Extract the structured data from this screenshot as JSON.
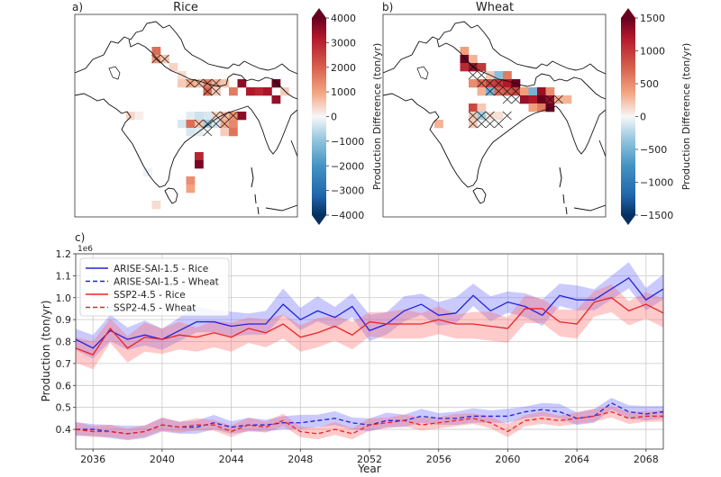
{
  "figure": {
    "panels": [
      {
        "panel_label": "a)",
        "title": "Rice",
        "colorbar": {
          "label": "Production Difference (ton/yr)",
          "min": -4000,
          "max": 4000,
          "ticks": [
            4000,
            3000,
            2000,
            1000,
            0,
            -1000,
            -2000,
            -3000,
            -4000
          ],
          "tick_labels": [
            "4000",
            "3000",
            "2000",
            "1000",
            "0",
            "−1000",
            "−2000",
            "−3000",
            "−4000"
          ],
          "extend": "both",
          "colormap": "RdBu_r"
        }
      },
      {
        "panel_label": "b)",
        "title": "Wheat",
        "colorbar": {
          "label": "Production Difference (ton/yr)",
          "min": -1500,
          "max": 1500,
          "ticks": [
            1500,
            1000,
            500,
            0,
            -500,
            -1000,
            -1500
          ],
          "tick_labels": [
            "1500",
            "1000",
            "500",
            "0",
            "−500",
            "−1000",
            "−1500"
          ],
          "extend": "both",
          "colormap": "RdBu_r"
        }
      }
    ],
    "timeseries_panel_label": "c)"
  },
  "chart_data": [
    {
      "type": "heatmap",
      "title": "Rice",
      "panel": "a)",
      "region": "South Asia (India)",
      "value_label": "Production Difference (ton/yr)",
      "vmin": -4000,
      "vmax": 4000,
      "hatching": "x marks statistically significant cells",
      "cells_description": "Positive differences concentrated in the Indo-Gangetic plain, Bangladesh/Assam and eastern coast; weak negative values in central-east India",
      "cells": [
        {
          "col": 9,
          "row": 4,
          "value": 1800
        },
        {
          "col": 9,
          "row": 5,
          "value": 1200
        },
        {
          "col": 10,
          "row": 5,
          "value": 600
        },
        {
          "col": 11,
          "row": 6,
          "value": 400
        },
        {
          "col": 12,
          "row": 7,
          "value": 300
        },
        {
          "col": 13,
          "row": 8,
          "value": 900
        },
        {
          "col": 14,
          "row": 8,
          "value": 700
        },
        {
          "col": 12,
          "row": 8,
          "value": 500
        },
        {
          "col": 15,
          "row": 8,
          "value": 1500
        },
        {
          "col": 16,
          "row": 8,
          "value": 800
        },
        {
          "col": 17,
          "row": 8,
          "value": 600
        },
        {
          "col": 15,
          "row": 9,
          "value": 1900
        },
        {
          "col": 16,
          "row": 9,
          "value": 500
        },
        {
          "col": 18,
          "row": 9,
          "value": 1600
        },
        {
          "col": 19,
          "row": 8,
          "value": 3600
        },
        {
          "col": 20,
          "row": 9,
          "value": 3200
        },
        {
          "col": 21,
          "row": 9,
          "value": 3000
        },
        {
          "col": 22,
          "row": 9,
          "value": 3300
        },
        {
          "col": 23,
          "row": 8,
          "value": 4000
        },
        {
          "col": 23,
          "row": 10,
          "value": 3500
        },
        {
          "col": 24,
          "row": 9,
          "value": 500
        },
        {
          "col": 6,
          "row": 12,
          "value": 400
        },
        {
          "col": 7,
          "row": 12,
          "value": 100
        },
        {
          "col": 13,
          "row": 12,
          "value": -200
        },
        {
          "col": 14,
          "row": 12,
          "value": -400
        },
        {
          "col": 15,
          "row": 12,
          "value": -300
        },
        {
          "col": 16,
          "row": 12,
          "value": 400
        },
        {
          "col": 17,
          "row": 12,
          "value": 700
        },
        {
          "col": 18,
          "row": 12,
          "value": 1200
        },
        {
          "col": 19,
          "row": 12,
          "value": 3600
        },
        {
          "col": 12,
          "row": 13,
          "value": -300
        },
        {
          "col": 13,
          "row": 13,
          "value": 1800
        },
        {
          "col": 14,
          "row": 13,
          "value": 600
        },
        {
          "col": 15,
          "row": 13,
          "value": -800
        },
        {
          "col": 16,
          "row": 13,
          "value": -300
        },
        {
          "col": 17,
          "row": 13,
          "value": 900
        },
        {
          "col": 18,
          "row": 13,
          "value": 1400
        },
        {
          "col": 13,
          "row": 14,
          "value": -300
        },
        {
          "col": 14,
          "row": 14,
          "value": -200
        },
        {
          "col": 17,
          "row": 14,
          "value": 500
        },
        {
          "col": 18,
          "row": 14,
          "value": 1700
        },
        {
          "col": 14,
          "row": 17,
          "value": 3000
        },
        {
          "col": 14,
          "row": 18,
          "value": 3800
        },
        {
          "col": 13,
          "row": 20,
          "value": 1300
        },
        {
          "col": 13,
          "row": 21,
          "value": 1000
        },
        {
          "col": 8,
          "row": 19,
          "value": -100
        },
        {
          "col": 9,
          "row": 23,
          "value": 300
        }
      ],
      "hatched_cells": [
        [
          9,
          5
        ],
        [
          10,
          5
        ],
        [
          13,
          8
        ],
        [
          14,
          8
        ],
        [
          15,
          8
        ],
        [
          16,
          8
        ],
        [
          15,
          9
        ],
        [
          16,
          9
        ],
        [
          14,
          13
        ],
        [
          15,
          13
        ],
        [
          16,
          13
        ],
        [
          15,
          14
        ],
        [
          17,
          12
        ],
        [
          18,
          12
        ],
        [
          17,
          13
        ],
        [
          16,
          12
        ]
      ]
    },
    {
      "type": "heatmap",
      "title": "Wheat",
      "panel": "b)",
      "region": "South Asia (India)",
      "value_label": "Production Difference (ton/yr)",
      "vmin": -1500,
      "vmax": 1500,
      "hatching": "x marks statistically significant cells",
      "cells_description": "Strong positive differences across Punjab / Indo-Gangetic plain; a few small negative cells",
      "cells": [
        {
          "col": 9,
          "row": 4,
          "value": 400
        },
        {
          "col": 9,
          "row": 5,
          "value": 1500
        },
        {
          "col": 10,
          "row": 5,
          "value": 300
        },
        {
          "col": 9,
          "row": 6,
          "value": 1100
        },
        {
          "col": 10,
          "row": 6,
          "value": 1300
        },
        {
          "col": 11,
          "row": 6,
          "value": 1000
        },
        {
          "col": 12,
          "row": 7,
          "value": 200
        },
        {
          "col": 13,
          "row": 7,
          "value": -400
        },
        {
          "col": 14,
          "row": 7,
          "value": 600
        },
        {
          "col": 10,
          "row": 8,
          "value": 500
        },
        {
          "col": 11,
          "row": 8,
          "value": 700
        },
        {
          "col": 12,
          "row": 8,
          "value": 900
        },
        {
          "col": 13,
          "row": 8,
          "value": 1000
        },
        {
          "col": 14,
          "row": 8,
          "value": 1200
        },
        {
          "col": 15,
          "row": 8,
          "value": 1500
        },
        {
          "col": 11,
          "row": 9,
          "value": 300
        },
        {
          "col": 12,
          "row": 9,
          "value": -500
        },
        {
          "col": 13,
          "row": 9,
          "value": 700
        },
        {
          "col": 14,
          "row": 9,
          "value": 800
        },
        {
          "col": 15,
          "row": 9,
          "value": 900
        },
        {
          "col": 16,
          "row": 9,
          "value": 400
        },
        {
          "col": 17,
          "row": 9,
          "value": -500
        },
        {
          "col": 18,
          "row": 9,
          "value": 1300
        },
        {
          "col": 19,
          "row": 9,
          "value": 500
        },
        {
          "col": 16,
          "row": 10,
          "value": 1300
        },
        {
          "col": 17,
          "row": 10,
          "value": 1200
        },
        {
          "col": 18,
          "row": 10,
          "value": 1500
        },
        {
          "col": 19,
          "row": 10,
          "value": 1300
        },
        {
          "col": 20,
          "row": 10,
          "value": 300
        },
        {
          "col": 21,
          "row": 10,
          "value": 300
        },
        {
          "col": 17,
          "row": 11,
          "value": 400
        },
        {
          "col": 18,
          "row": 11,
          "value": 600
        },
        {
          "col": 19,
          "row": 11,
          "value": 1500
        },
        {
          "col": 10,
          "row": 11,
          "value": 900
        },
        {
          "col": 11,
          "row": 11,
          "value": 200
        },
        {
          "col": 10,
          "row": 12,
          "value": 200
        },
        {
          "col": 11,
          "row": 12,
          "value": -300
        },
        {
          "col": 12,
          "row": 12,
          "value": 100
        },
        {
          "col": 13,
          "row": 12,
          "value": 100
        },
        {
          "col": 6,
          "row": 13,
          "value": 300
        },
        {
          "col": 10,
          "row": 13,
          "value": 200
        }
      ],
      "hatched_cells": [
        [
          10,
          6
        ],
        [
          10,
          7
        ],
        [
          11,
          7
        ],
        [
          11,
          8
        ],
        [
          12,
          8
        ],
        [
          13,
          8
        ],
        [
          12,
          9
        ],
        [
          13,
          9
        ],
        [
          14,
          9
        ],
        [
          15,
          9
        ],
        [
          14,
          10
        ],
        [
          15,
          10
        ],
        [
          19,
          10
        ],
        [
          20,
          10
        ],
        [
          10,
          12
        ],
        [
          11,
          12
        ],
        [
          12,
          12
        ],
        [
          10,
          13
        ],
        [
          11,
          13
        ],
        [
          12,
          13
        ],
        [
          13,
          13
        ],
        [
          14,
          12
        ]
      ]
    },
    {
      "type": "line",
      "panel": "c)",
      "title": "",
      "xlabel": "Year",
      "ylabel": "Production (ton/yr)",
      "y_scale_label": "1e6",
      "xlim": [
        2035,
        2069
      ],
      "ylim": [
        0.31,
        1.2
      ],
      "xticks": [
        2036,
        2040,
        2044,
        2048,
        2052,
        2056,
        2060,
        2064,
        2068
      ],
      "yticks": [
        0.4,
        0.5,
        0.6,
        0.7,
        0.8,
        0.9,
        1.0,
        1.1,
        1.2
      ],
      "ytick_labels": [
        "0.4",
        "0.5",
        "0.6",
        "0.7",
        "0.8",
        "0.9",
        "1.0",
        "1.1",
        "1.2"
      ],
      "grid": true,
      "legend_position": "top-left",
      "x": [
        2035,
        2036,
        2037,
        2038,
        2039,
        2040,
        2041,
        2042,
        2043,
        2044,
        2045,
        2046,
        2047,
        2048,
        2049,
        2050,
        2051,
        2052,
        2053,
        2054,
        2055,
        2056,
        2057,
        2058,
        2059,
        2060,
        2061,
        2062,
        2063,
        2064,
        2065,
        2066,
        2067,
        2068,
        2069
      ],
      "series": [
        {
          "name": "ARISE-SAI-1.5 - Rice",
          "color": "#2222dd",
          "linestyle": "solid",
          "band_color": "#6666ff",
          "band_half_width": 0.06,
          "values": [
            0.81,
            0.77,
            0.85,
            0.81,
            0.83,
            0.81,
            0.85,
            0.89,
            0.89,
            0.87,
            0.88,
            0.88,
            0.97,
            0.9,
            0.94,
            0.91,
            0.96,
            0.85,
            0.88,
            0.94,
            0.97,
            0.92,
            0.93,
            1.01,
            0.94,
            0.98,
            0.96,
            0.92,
            1.01,
            0.99,
            0.99,
            1.04,
            1.09,
            0.99,
            1.04
          ]
        },
        {
          "name": "ARISE-SAI-1.5 - Wheat",
          "color": "#2222dd",
          "linestyle": "dashed",
          "band_color": "#6666ff",
          "band_half_width": 0.03,
          "values": [
            0.4,
            0.4,
            0.39,
            0.38,
            0.39,
            0.42,
            0.41,
            0.41,
            0.43,
            0.41,
            0.42,
            0.42,
            0.43,
            0.43,
            0.44,
            0.45,
            0.43,
            0.42,
            0.44,
            0.44,
            0.46,
            0.45,
            0.45,
            0.46,
            0.46,
            0.46,
            0.48,
            0.49,
            0.48,
            0.45,
            0.46,
            0.52,
            0.48,
            0.47,
            0.48
          ]
        },
        {
          "name": "SSP2-4.5 - Rice",
          "color": "#ee2222",
          "linestyle": "solid",
          "band_color": "#ff6666",
          "band_half_width": 0.055,
          "values": [
            0.77,
            0.74,
            0.86,
            0.77,
            0.82,
            0.81,
            0.83,
            0.82,
            0.84,
            0.82,
            0.86,
            0.84,
            0.88,
            0.82,
            0.84,
            0.87,
            0.83,
            0.89,
            0.88,
            0.88,
            0.88,
            0.9,
            0.88,
            0.88,
            0.87,
            0.86,
            0.95,
            0.95,
            0.89,
            0.88,
            0.98,
            1.0,
            0.94,
            0.97,
            0.93
          ]
        },
        {
          "name": "SSP2-4.5 - Wheat",
          "color": "#ee2222",
          "linestyle": "dashed",
          "band_color": "#ff6666",
          "band_half_width": 0.028,
          "values": [
            0.4,
            0.39,
            0.39,
            0.38,
            0.39,
            0.42,
            0.41,
            0.42,
            0.42,
            0.39,
            0.42,
            0.41,
            0.44,
            0.39,
            0.38,
            0.4,
            0.38,
            0.42,
            0.43,
            0.44,
            0.42,
            0.43,
            0.44,
            0.45,
            0.43,
            0.39,
            0.44,
            0.45,
            0.44,
            0.45,
            0.46,
            0.48,
            0.45,
            0.46,
            0.46
          ]
        }
      ]
    }
  ]
}
